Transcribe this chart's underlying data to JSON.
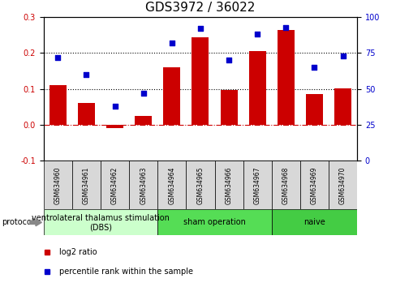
{
  "title": "GDS3972 / 36022",
  "samples": [
    "GSM634960",
    "GSM634961",
    "GSM634962",
    "GSM634963",
    "GSM634964",
    "GSM634965",
    "GSM634966",
    "GSM634967",
    "GSM634968",
    "GSM634969",
    "GSM634970"
  ],
  "log2_ratio": [
    0.11,
    0.062,
    -0.01,
    0.025,
    0.16,
    0.245,
    0.098,
    0.205,
    0.265,
    0.085,
    0.102
  ],
  "percentile_rank": [
    72,
    60,
    38,
    47,
    82,
    92,
    70,
    88,
    93,
    65,
    73
  ],
  "bar_color": "#cc0000",
  "dot_color": "#0000cc",
  "ylim_left": [
    -0.1,
    0.3
  ],
  "ylim_right": [
    0,
    100
  ],
  "yticks_left": [
    -0.1,
    0.0,
    0.1,
    0.2,
    0.3
  ],
  "yticks_right": [
    0,
    25,
    50,
    75,
    100
  ],
  "hline_y": [
    0.1,
    0.2
  ],
  "zero_line_color": "#cc0000",
  "hline_color": "black",
  "groups": [
    {
      "label": "ventrolateral thalamus stimulation\n(DBS)",
      "start": 0,
      "end": 3,
      "color": "#ccffcc"
    },
    {
      "label": "sham operation",
      "start": 4,
      "end": 7,
      "color": "#55dd55"
    },
    {
      "label": "naive",
      "start": 8,
      "end": 10,
      "color": "#44cc44"
    }
  ],
  "protocol_label": "protocol",
  "legend": [
    {
      "label": "log2 ratio",
      "color": "#cc0000"
    },
    {
      "label": "percentile rank within the sample",
      "color": "#0000cc"
    }
  ],
  "sample_bg_color": "#d8d8d8",
  "title_fontsize": 11,
  "tick_fontsize": 7,
  "sample_fontsize": 5.5,
  "legend_fontsize": 7,
  "group_fontsize": 7
}
